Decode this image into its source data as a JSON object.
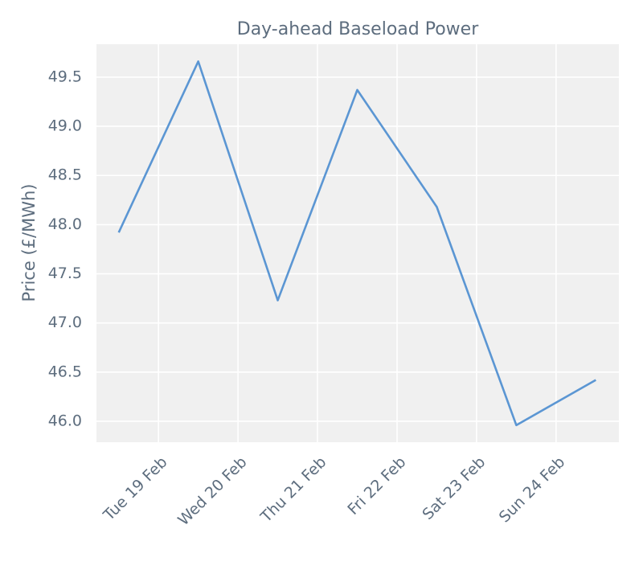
{
  "chart_data": {
    "type": "line",
    "title": "Day-ahead Baseload Power",
    "ylabel": "Price (£/MWh)",
    "x": [
      18.5,
      19.5,
      20.5,
      21.5,
      22.5,
      23.5,
      24.5
    ],
    "series": [
      {
        "color": "#5b96d3",
        "values": [
          47.92,
          49.66,
          47.23,
          49.37,
          48.18,
          45.96,
          46.42
        ]
      }
    ],
    "xlim": [
      18.22,
      24.79
    ],
    "xticks": [
      {
        "value": 19,
        "label": "Tue 19 Feb"
      },
      {
        "value": 20,
        "label": "Wed 20 Feb"
      },
      {
        "value": 21,
        "label": "Thu 21 Feb"
      },
      {
        "value": 22,
        "label": "Fri 22 Feb"
      },
      {
        "value": 23,
        "label": "Sat 23 Feb"
      },
      {
        "value": 24,
        "label": "Sun 24 Feb"
      }
    ],
    "ylim": [
      45.787,
      49.835
    ],
    "yticks": [
      {
        "value": 46,
        "label": "46.0"
      },
      46.5,
      {
        "value": 47,
        "label": "47.0"
      },
      47.5,
      {
        "value": 48,
        "label": "48.0"
      },
      48.5,
      {
        "value": 49,
        "label": "49.0"
      },
      49.5
    ],
    "grid": true
  }
}
